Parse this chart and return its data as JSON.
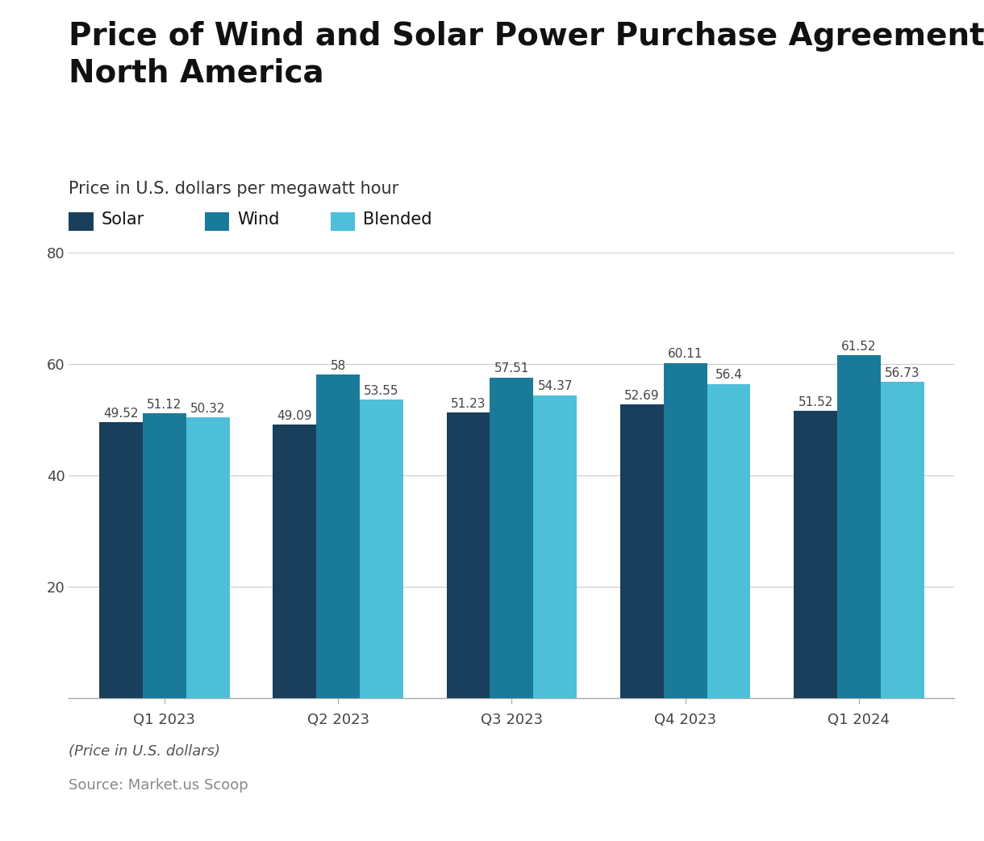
{
  "title": "Price of Wind and Solar Power Purchase Agreements in\nNorth America",
  "subtitle": "Price in U.S. dollars per megawatt hour",
  "footnote": "(Price in U.S. dollars)",
  "source": "Source: Market.us Scoop",
  "categories": [
    "Q1 2023",
    "Q2 2023",
    "Q3 2023",
    "Q4 2023",
    "Q1 2024"
  ],
  "series": {
    "Solar": [
      49.52,
      49.09,
      51.23,
      52.69,
      51.52
    ],
    "Wind": [
      51.12,
      58.0,
      57.51,
      60.11,
      61.52
    ],
    "Blended": [
      50.32,
      53.55,
      54.37,
      56.4,
      56.73
    ]
  },
  "colors": {
    "Solar": "#1a3f5c",
    "Wind": "#1a7a9a",
    "Blended": "#4dbfd9"
  },
  "legend_labels": [
    "Solar",
    "Wind",
    "Blended"
  ],
  "ylim": [
    0,
    80
  ],
  "yticks": [
    0,
    20,
    40,
    60,
    80
  ],
  "bar_width": 0.25,
  "label_fontsize": 11,
  "tick_fontsize": 13,
  "title_fontsize": 28,
  "subtitle_fontsize": 15,
  "legend_fontsize": 15,
  "footnote_fontsize": 13,
  "source_fontsize": 13,
  "background_color": "#ffffff",
  "grid_color": "#cccccc",
  "title_color": "#111111",
  "subtitle_color": "#333333",
  "tick_color": "#444444",
  "footnote_color": "#555555",
  "source_color": "#888888"
}
